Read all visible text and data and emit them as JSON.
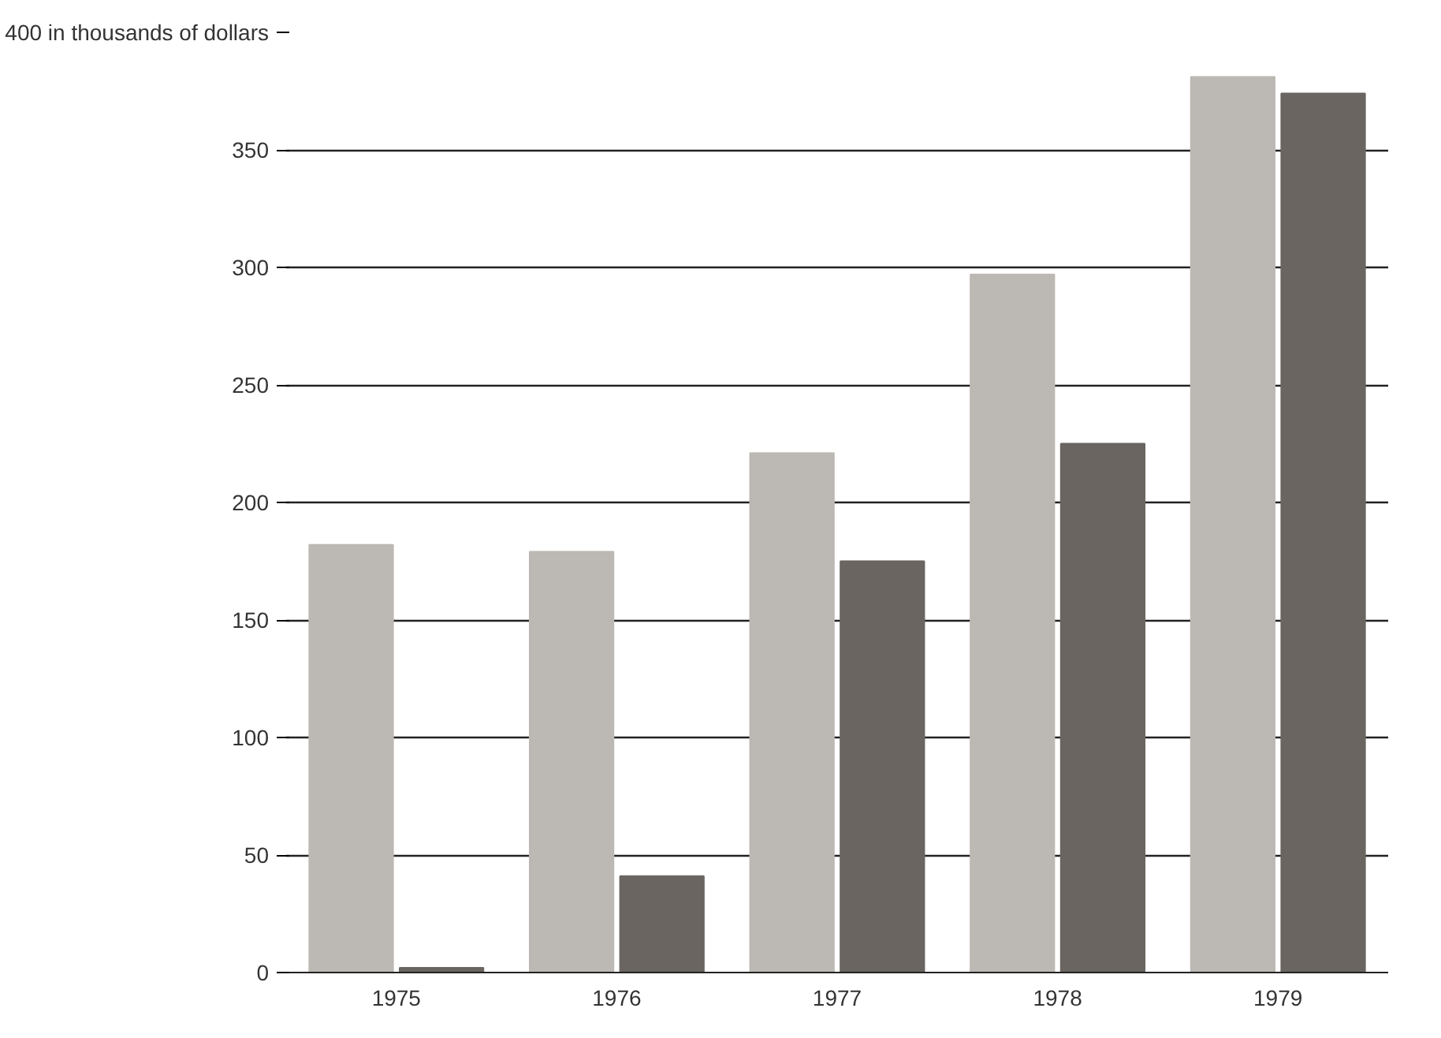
{
  "chart_data": {
    "type": "bar",
    "categories": [
      "1975",
      "1976",
      "1977",
      "1978",
      "1979"
    ],
    "series": [
      {
        "color": "#bcb8b3",
        "values": [
          182,
          179,
          221,
          297,
          381
        ]
      },
      {
        "color": "#6a6560",
        "values": [
          2,
          41,
          175,
          225,
          374
        ]
      }
    ],
    "ylim": [
      0,
      400
    ],
    "yticks": [
      {
        "value": 0,
        "label": "0"
      },
      50,
      100,
      150,
      200,
      250,
      300,
      350,
      {
        "value": 400,
        "label": "400 in thousands of dollars"
      }
    ],
    "grid": "y"
  }
}
